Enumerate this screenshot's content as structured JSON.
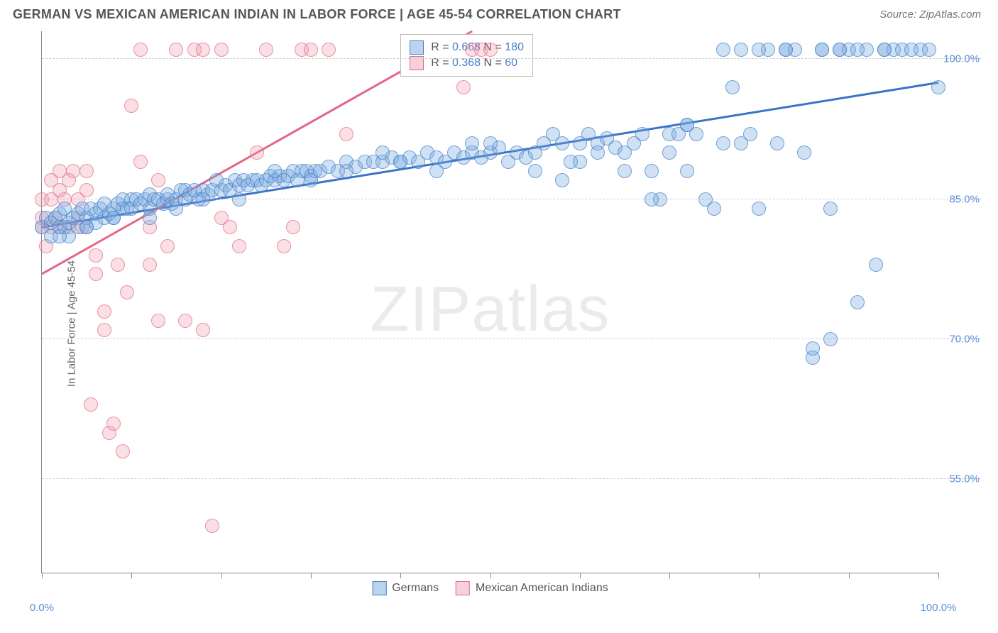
{
  "header": {
    "title": "GERMAN VS MEXICAN AMERICAN INDIAN IN LABOR FORCE | AGE 45-54 CORRELATION CHART",
    "source_prefix": "Source: ",
    "source_name": "ZipAtlas.com"
  },
  "chart": {
    "type": "scatter",
    "ylabel": "In Labor Force | Age 45-54",
    "background_color": "#ffffff",
    "grid_color": "#d0d0d0",
    "axis_color": "#888888",
    "label_fontsize": 15,
    "title_fontsize": 18,
    "xlim": [
      0,
      100
    ],
    "ylim": [
      45,
      103
    ],
    "xtick_positions": [
      0,
      10,
      20,
      30,
      40,
      50,
      60,
      70,
      80,
      90,
      100
    ],
    "xtick_labels": {
      "0": "0.0%",
      "100": "100.0%"
    },
    "yticks": [
      {
        "v": 55,
        "label": "55.0%"
      },
      {
        "v": 70,
        "label": "70.0%"
      },
      {
        "v": 85,
        "label": "85.0%"
      },
      {
        "v": 100,
        "label": "100.0%"
      }
    ],
    "marker_radius": 10,
    "watermark": {
      "part1": "ZIP",
      "part2": "atlas"
    },
    "stats_box": {
      "rows": [
        {
          "swatch": "blue",
          "r_label": "R = ",
          "r": "0.668",
          "n_label": "   N = ",
          "n": "180"
        },
        {
          "swatch": "pink",
          "r_label": "R = ",
          "r": "0.368",
          "n_label": "   N =  ",
          "n": "60"
        }
      ]
    },
    "bottom_legend": [
      {
        "swatch": "blue",
        "label": "Germans"
      },
      {
        "swatch": "pink",
        "label": "Mexican American Indians"
      }
    ],
    "series": {
      "blue": {
        "color_fill": "rgba(119,168,223,0.35)",
        "color_stroke": "rgba(70,130,200,0.7)",
        "trend": {
          "x1": 0,
          "y1": 82,
          "x2": 100,
          "y2": 97.5,
          "color": "#3a72c8",
          "width": 3
        },
        "points": [
          [
            0,
            82
          ],
          [
            0.5,
            83
          ],
          [
            1,
            81
          ],
          [
            1,
            82.5
          ],
          [
            1.5,
            83
          ],
          [
            2,
            82
          ],
          [
            2,
            83.5
          ],
          [
            2.5,
            82
          ],
          [
            2.5,
            84
          ],
          [
            3,
            82.5
          ],
          [
            3,
            81
          ],
          [
            3.5,
            83
          ],
          [
            4,
            82
          ],
          [
            4,
            83.5
          ],
          [
            4.5,
            84
          ],
          [
            5,
            83
          ],
          [
            5,
            82
          ],
          [
            5.5,
            84
          ],
          [
            6,
            83.5
          ],
          [
            6,
            82.5
          ],
          [
            6.5,
            84
          ],
          [
            7,
            83
          ],
          [
            7,
            84.5
          ],
          [
            7.5,
            83.5
          ],
          [
            8,
            84
          ],
          [
            8,
            83
          ],
          [
            8.5,
            84.5
          ],
          [
            9,
            84
          ],
          [
            9,
            85
          ],
          [
            9.5,
            84
          ],
          [
            10,
            85
          ],
          [
            10,
            84
          ],
          [
            10.5,
            85
          ],
          [
            11,
            84.5
          ],
          [
            11.5,
            85
          ],
          [
            12,
            84
          ],
          [
            12,
            85.5
          ],
          [
            12.5,
            85
          ],
          [
            13,
            85
          ],
          [
            13.5,
            84.5
          ],
          [
            14,
            85
          ],
          [
            14,
            85.5
          ],
          [
            14.5,
            84.5
          ],
          [
            15,
            85
          ],
          [
            15.5,
            86
          ],
          [
            16,
            85
          ],
          [
            16,
            86
          ],
          [
            16.5,
            85.5
          ],
          [
            17,
            86
          ],
          [
            17.5,
            85
          ],
          [
            18,
            86
          ],
          [
            18.5,
            85.5
          ],
          [
            19,
            86
          ],
          [
            19.5,
            87
          ],
          [
            20,
            86
          ],
          [
            20.5,
            86.5
          ],
          [
            21,
            86
          ],
          [
            21.5,
            87
          ],
          [
            22,
            86.5
          ],
          [
            22.5,
            87
          ],
          [
            23,
            86.5
          ],
          [
            23.5,
            87
          ],
          [
            24,
            87
          ],
          [
            24.5,
            86.5
          ],
          [
            25,
            87
          ],
          [
            25.5,
            87.5
          ],
          [
            26,
            87
          ],
          [
            26.5,
            87.5
          ],
          [
            27,
            87
          ],
          [
            27.5,
            87.5
          ],
          [
            28,
            88
          ],
          [
            28.5,
            87
          ],
          [
            29,
            88
          ],
          [
            29.5,
            88
          ],
          [
            30,
            87.5
          ],
          [
            30.5,
            88
          ],
          [
            31,
            88
          ],
          [
            32,
            88.5
          ],
          [
            33,
            88
          ],
          [
            34,
            89
          ],
          [
            35,
            88.5
          ],
          [
            36,
            89
          ],
          [
            37,
            89
          ],
          [
            38,
            89
          ],
          [
            39,
            89.5
          ],
          [
            40,
            89
          ],
          [
            41,
            89.5
          ],
          [
            42,
            89
          ],
          [
            43,
            90
          ],
          [
            44,
            89.5
          ],
          [
            45,
            89
          ],
          [
            46,
            90
          ],
          [
            47,
            89.5
          ],
          [
            48,
            90
          ],
          [
            49,
            89.5
          ],
          [
            50,
            90
          ],
          [
            51,
            90.5
          ],
          [
            52,
            89
          ],
          [
            53,
            90
          ],
          [
            54,
            89.5
          ],
          [
            55,
            90
          ],
          [
            56,
            91
          ],
          [
            57,
            92
          ],
          [
            58,
            91
          ],
          [
            59,
            89
          ],
          [
            60,
            91
          ],
          [
            61,
            92
          ],
          [
            62,
            91
          ],
          [
            63,
            91.5
          ],
          [
            64,
            90.5
          ],
          [
            65,
            90
          ],
          [
            66,
            91
          ],
          [
            67,
            92
          ],
          [
            68,
            88
          ],
          [
            69,
            85
          ],
          [
            70,
            92
          ],
          [
            71,
            92
          ],
          [
            72,
            93
          ],
          [
            73,
            92
          ],
          [
            74,
            85
          ],
          [
            75,
            84
          ],
          [
            76,
            101
          ],
          [
            77,
            97
          ],
          [
            78,
            101
          ],
          [
            79,
            92
          ],
          [
            80,
            84
          ],
          [
            81,
            101
          ],
          [
            82,
            91
          ],
          [
            83,
            101
          ],
          [
            84,
            101
          ],
          [
            85,
            90
          ],
          [
            86,
            68
          ],
          [
            87,
            101
          ],
          [
            88,
            84
          ],
          [
            89,
            101
          ],
          [
            90,
            101
          ],
          [
            91,
            74
          ],
          [
            92,
            101
          ],
          [
            93,
            78
          ],
          [
            94,
            101
          ],
          [
            95,
            101
          ],
          [
            96,
            101
          ],
          [
            97,
            101
          ],
          [
            98,
            101
          ],
          [
            99,
            101
          ],
          [
            100,
            97
          ],
          [
            68,
            85
          ],
          [
            72,
            88
          ],
          [
            58,
            87
          ],
          [
            48,
            91
          ],
          [
            40,
            89
          ],
          [
            62,
            90
          ],
          [
            55,
            88
          ],
          [
            50,
            91
          ],
          [
            44,
            88
          ],
          [
            38,
            90
          ],
          [
            34,
            88
          ],
          [
            30,
            87
          ],
          [
            26,
            88
          ],
          [
            22,
            85
          ],
          [
            18,
            85
          ],
          [
            15,
            84
          ],
          [
            12,
            83
          ],
          [
            8,
            83
          ],
          [
            5,
            82
          ],
          [
            2,
            81
          ],
          [
            86,
            69
          ],
          [
            88,
            70
          ],
          [
            72,
            93
          ],
          [
            76,
            91
          ],
          [
            80,
            101
          ],
          [
            83,
            101
          ],
          [
            87,
            101
          ],
          [
            89,
            101
          ],
          [
            91,
            101
          ],
          [
            94,
            101
          ],
          [
            78,
            91
          ],
          [
            70,
            90
          ],
          [
            65,
            88
          ],
          [
            60,
            89
          ]
        ]
      },
      "pink": {
        "color_fill": "rgba(240,150,170,0.30)",
        "color_stroke": "rgba(225,110,140,0.7)",
        "trend": {
          "x1": 0,
          "y1": 77,
          "x2": 48,
          "y2": 103,
          "color": "#e26788",
          "width": 3
        },
        "points": [
          [
            0,
            82
          ],
          [
            0,
            83
          ],
          [
            0,
            85
          ],
          [
            0.5,
            80
          ],
          [
            1,
            82
          ],
          [
            1,
            85
          ],
          [
            1,
            87
          ],
          [
            1.5,
            83
          ],
          [
            2,
            86
          ],
          [
            2,
            82
          ],
          [
            2,
            88
          ],
          [
            2.5,
            85
          ],
          [
            3,
            87
          ],
          [
            3,
            82
          ],
          [
            3.5,
            88
          ],
          [
            4,
            85
          ],
          [
            4,
            83
          ],
          [
            4.5,
            82
          ],
          [
            5,
            88
          ],
          [
            5,
            86
          ],
          [
            5.5,
            63
          ],
          [
            6,
            77
          ],
          [
            6,
            79
          ],
          [
            7,
            71
          ],
          [
            7,
            73
          ],
          [
            7.5,
            60
          ],
          [
            8,
            61
          ],
          [
            8.5,
            78
          ],
          [
            9,
            58
          ],
          [
            9.5,
            75
          ],
          [
            10,
            95
          ],
          [
            11,
            101
          ],
          [
            11,
            89
          ],
          [
            12,
            82
          ],
          [
            12,
            78
          ],
          [
            13,
            72
          ],
          [
            13,
            87
          ],
          [
            14,
            80
          ],
          [
            15,
            101
          ],
          [
            16,
            72
          ],
          [
            17,
            101
          ],
          [
            18,
            101
          ],
          [
            18,
            71
          ],
          [
            19,
            50
          ],
          [
            20,
            83
          ],
          [
            20,
            101
          ],
          [
            21,
            82
          ],
          [
            22,
            80
          ],
          [
            24,
            90
          ],
          [
            25,
            101
          ],
          [
            27,
            80
          ],
          [
            28,
            82
          ],
          [
            29,
            101
          ],
          [
            30,
            101
          ],
          [
            32,
            101
          ],
          [
            34,
            92
          ],
          [
            47,
            97
          ],
          [
            48,
            101
          ],
          [
            49,
            101
          ],
          [
            50,
            101
          ]
        ]
      }
    }
  }
}
